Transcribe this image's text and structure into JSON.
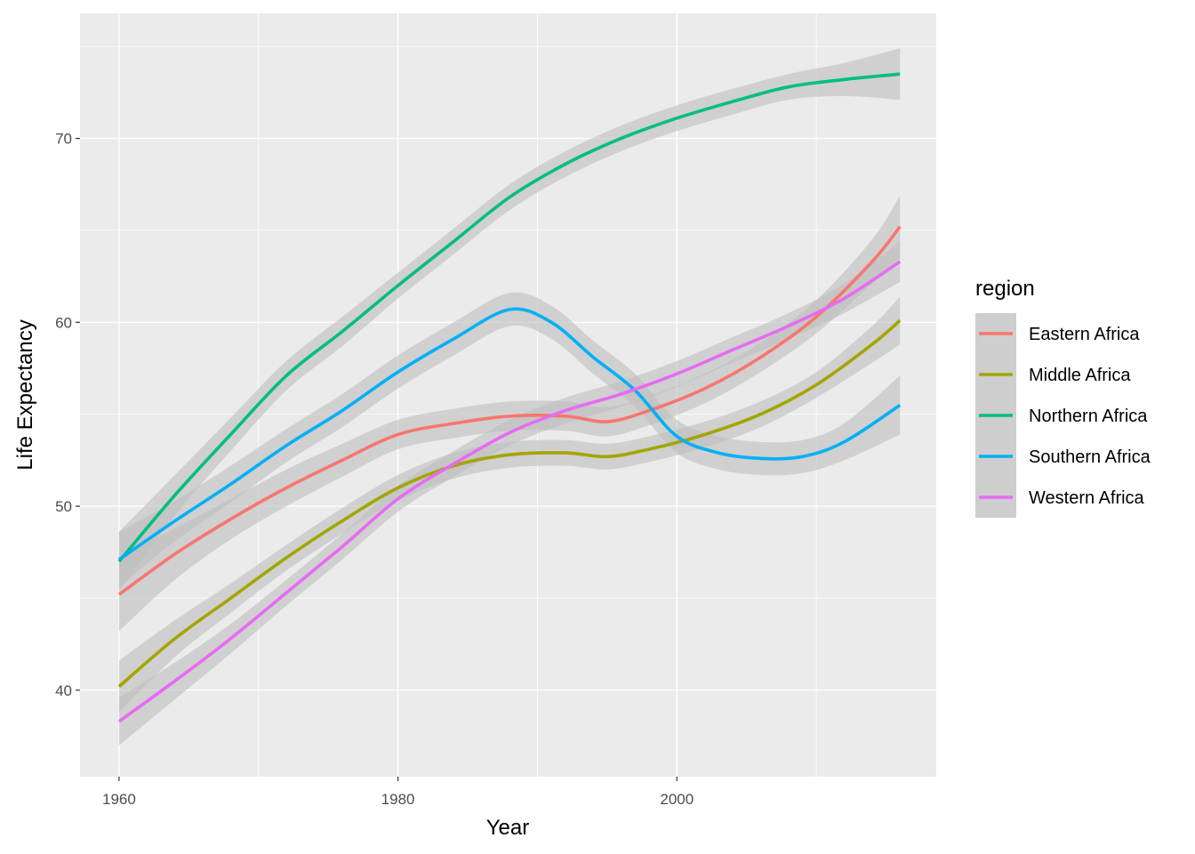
{
  "chart_data": {
    "type": "line",
    "xlabel": "Year",
    "ylabel": "Life Expectancy",
    "xlim": [
      1957.2,
      2018.6
    ],
    "ylim": [
      35.3,
      76.8
    ],
    "x_ticks": [
      1960,
      1980,
      2000
    ],
    "y_ticks": [
      40,
      50,
      60,
      70
    ],
    "grid": true,
    "legend": {
      "title": "region",
      "position": "right"
    },
    "band_color": "#BEBEBE",
    "series": [
      {
        "name": "Eastern Africa",
        "color": "#F8766D",
        "x": [
          1960,
          1964,
          1968,
          1972,
          1976,
          1980,
          1984,
          1988,
          1992,
          1995,
          1998,
          2002,
          2006,
          2010,
          2014,
          2016
        ],
        "y": [
          45.2,
          47.4,
          49.3,
          51.0,
          52.5,
          53.9,
          54.5,
          54.9,
          54.9,
          54.6,
          55.2,
          56.4,
          58.1,
          60.3,
          63.3,
          65.2
        ],
        "band": [
          2.0,
          1.4,
          1.1,
          1.0,
          0.9,
          0.8,
          0.8,
          0.8,
          0.8,
          0.8,
          0.8,
          0.8,
          0.8,
          0.9,
          1.2,
          1.7
        ]
      },
      {
        "name": "Middle Africa",
        "color": "#A3A500",
        "x": [
          1960,
          1964,
          1968,
          1972,
          1976,
          1980,
          1984,
          1988,
          1992,
          1995,
          1998,
          2002,
          2006,
          2010,
          2014,
          2016
        ],
        "y": [
          40.2,
          42.8,
          45.0,
          47.2,
          49.2,
          51.0,
          52.2,
          52.8,
          52.9,
          52.7,
          53.1,
          53.9,
          55.0,
          56.6,
          58.8,
          60.1
        ],
        "band": [
          1.4,
          1.0,
          0.8,
          0.7,
          0.7,
          0.7,
          0.7,
          0.7,
          0.7,
          0.7,
          0.7,
          0.7,
          0.7,
          0.7,
          1.0,
          1.3
        ]
      },
      {
        "name": "Northern Africa",
        "color": "#00BF7D",
        "x": [
          1960,
          1964,
          1968,
          1972,
          1976,
          1980,
          1984,
          1988,
          1992,
          1996,
          2000,
          2004,
          2008,
          2012,
          2016
        ],
        "y": [
          47.0,
          50.6,
          53.9,
          57.1,
          59.5,
          62.0,
          64.4,
          66.8,
          68.6,
          70.0,
          71.1,
          72.0,
          72.8,
          73.2,
          73.5
        ],
        "band": [
          1.6,
          1.1,
          0.9,
          0.8,
          0.8,
          0.7,
          0.7,
          0.7,
          0.7,
          0.7,
          0.7,
          0.7,
          0.7,
          0.9,
          1.4
        ]
      },
      {
        "name": "Southern Africa",
        "color": "#00B0F6",
        "x": [
          1960,
          1964,
          1968,
          1972,
          1976,
          1980,
          1984,
          1988,
          1991,
          1994,
          1997,
          2000,
          2003,
          2006,
          2009,
          2012,
          2016
        ],
        "y": [
          47.1,
          49.2,
          51.2,
          53.3,
          55.2,
          57.3,
          59.1,
          60.7,
          60.0,
          58.1,
          56.3,
          53.8,
          52.9,
          52.6,
          52.7,
          53.5,
          55.5
        ],
        "band": [
          1.5,
          1.1,
          1.0,
          0.9,
          0.9,
          0.9,
          0.9,
          0.9,
          0.9,
          0.9,
          0.9,
          0.9,
          0.9,
          0.9,
          0.9,
          1.0,
          1.6
        ]
      },
      {
        "name": "Western Africa",
        "color": "#E76BF3",
        "x": [
          1960,
          1964,
          1968,
          1972,
          1976,
          1980,
          1984,
          1988,
          1992,
          1996,
          2000,
          2004,
          2008,
          2012,
          2016
        ],
        "y": [
          38.3,
          40.5,
          42.8,
          45.3,
          47.8,
          50.4,
          52.3,
          54.0,
          55.2,
          56.1,
          57.2,
          58.5,
          59.8,
          61.3,
          63.3
        ],
        "band": [
          1.3,
          1.0,
          0.8,
          0.7,
          0.7,
          0.7,
          0.7,
          0.7,
          0.7,
          0.7,
          0.7,
          0.7,
          0.7,
          0.8,
          1.1
        ]
      }
    ]
  }
}
